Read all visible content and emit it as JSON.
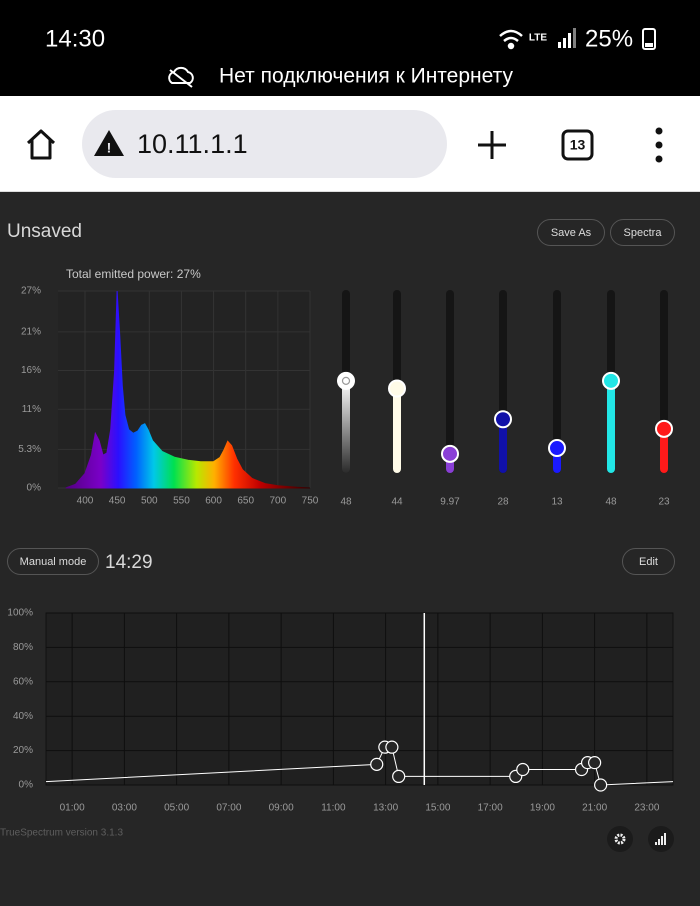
{
  "status_bar": {
    "time": "14:30",
    "battery": "25%",
    "notice": "Нет подключения к Интернету"
  },
  "browser": {
    "url": "10.11.1.1",
    "tab_count": "13"
  },
  "app": {
    "profile_name": "Unsaved",
    "buttons": [
      "Save As",
      "Spectra"
    ],
    "mode_button": "Manual mode",
    "time": "14:29",
    "edit_button": "Edit",
    "version": "TrueSpectrum version 3.1.3"
  },
  "chart_data": [
    {
      "type": "area",
      "title": "Total emitted power: 27%",
      "x": [
        370,
        385,
        400,
        410,
        416,
        422,
        428,
        434,
        440,
        446,
        450,
        454,
        458,
        462,
        468,
        475,
        482,
        488,
        493,
        498,
        505,
        520,
        540,
        560,
        580,
        600,
        610,
        616,
        622,
        628,
        636,
        645,
        660,
        680,
        700,
        730,
        750
      ],
      "values": [
        0,
        0.5,
        2,
        4.5,
        7.5,
        6.5,
        4.5,
        4.8,
        8,
        16,
        27,
        21,
        14,
        10,
        8,
        7.5,
        7.8,
        8.6,
        8.8,
        8,
        6.5,
        5,
        4.2,
        3.8,
        3.6,
        3.6,
        4.2,
        5.2,
        6.4,
        5.8,
        4,
        2.5,
        1.3,
        0.6,
        0.3,
        0.1,
        0
      ],
      "xlim": [
        358,
        750
      ],
      "ylim": [
        0,
        27
      ],
      "xticks": [
        400,
        450,
        500,
        550,
        600,
        650,
        700,
        750
      ],
      "yticks": [
        {
          "value": 0,
          "label": "0%"
        },
        {
          "value": 5.3,
          "label": "5.3%"
        },
        {
          "value": 10.8,
          "label": "11%"
        },
        {
          "value": 16.1,
          "label": "16%"
        },
        {
          "value": 21.4,
          "label": "21%"
        },
        {
          "value": 27,
          "label": "27%"
        }
      ],
      "grid": true
    },
    {
      "type": "slider",
      "values": [
        48,
        44,
        9.97,
        28,
        13,
        48,
        23
      ],
      "colors": [
        "#ffffff",
        "#fffbe8",
        "#8a3fd6",
        "#1010a8",
        "#1a1aff",
        "#22e6e6",
        "#ff1a1a"
      ]
    },
    {
      "type": "line",
      "x": [
        0,
        12.66,
        12.97,
        13.24,
        13.5,
        17.98,
        18.25,
        20.5,
        20.73,
        21.0,
        21.23,
        24
      ],
      "values": [
        2,
        12,
        22,
        22,
        5,
        5,
        9,
        9,
        13,
        13,
        0,
        2
      ],
      "color": "#ffffff",
      "now": 14.48,
      "xlim": [
        0,
        24
      ],
      "ylim": [
        0,
        100
      ],
      "xticks": [
        {
          "value": 1,
          "label": "01:00"
        },
        {
          "value": 3,
          "label": "03:00"
        },
        {
          "value": 5,
          "label": "05:00"
        },
        {
          "value": 7,
          "label": "07:00"
        },
        {
          "value": 9,
          "label": "09:00"
        },
        {
          "value": 11,
          "label": "11:00"
        },
        {
          "value": 13,
          "label": "13:00"
        },
        {
          "value": 15,
          "label": "15:00"
        },
        {
          "value": 17,
          "label": "17:00"
        },
        {
          "value": 19,
          "label": "19:00"
        },
        {
          "value": 21,
          "label": "21:00"
        },
        {
          "value": 23,
          "label": "23:00"
        }
      ],
      "yticks": [
        {
          "value": 0,
          "label": "0%"
        },
        {
          "value": 20,
          "label": "20%"
        },
        {
          "value": 40,
          "label": "40%"
        },
        {
          "value": 60,
          "label": "60%"
        },
        {
          "value": 80,
          "label": "80%"
        },
        {
          "value": 100,
          "label": "100%"
        }
      ],
      "grid": true
    }
  ]
}
